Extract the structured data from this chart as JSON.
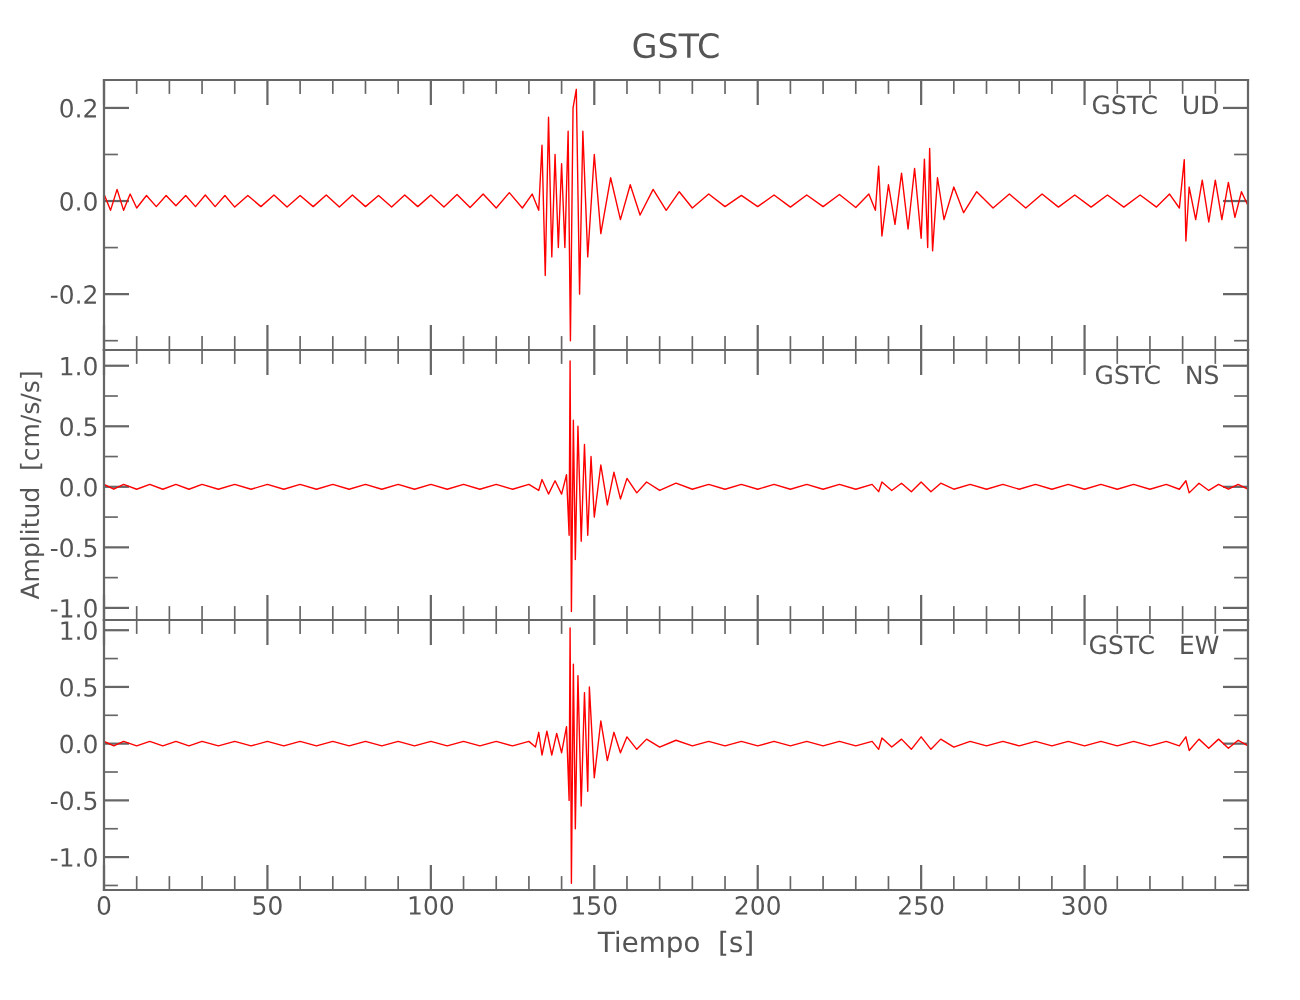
{
  "chart_data": [
    {
      "type": "line",
      "title": "GSTC",
      "annotations": [
        "GSTC   UD"
      ],
      "xlim": [
        0,
        350
      ],
      "xticks": [
        0,
        50,
        100,
        150,
        200,
        250,
        300
      ],
      "ylim": [
        -0.32,
        0.26
      ],
      "yticks": [
        {
          "value": -0.2,
          "label": "-0.2"
        },
        {
          "value": 0,
          "label": "0.0"
        },
        {
          "value": 0.2,
          "label": "0.2"
        }
      ],
      "tick_labels": "y",
      "grid": false,
      "legend": false,
      "series": [
        {
          "color": "#ff0000",
          "x": [
            0,
            2,
            4,
            6,
            8,
            10,
            13,
            16,
            19,
            22,
            25,
            28,
            31,
            34,
            37,
            40,
            44,
            48,
            52,
            56,
            60,
            64,
            68,
            72,
            76,
            80,
            84,
            88,
            92,
            96,
            100,
            104,
            108,
            112,
            116,
            120,
            124,
            128,
            131,
            133,
            134,
            135,
            136,
            137,
            138,
            139,
            140,
            141,
            142,
            142.7,
            143.5,
            144.5,
            145.5,
            146.5,
            148,
            150,
            152,
            155,
            158,
            161,
            164,
            168,
            172,
            176,
            180,
            185,
            190,
            195,
            200,
            205,
            210,
            215,
            220,
            225,
            230,
            234,
            236,
            237,
            238,
            240,
            242,
            244,
            246,
            248,
            250,
            251,
            252,
            252.6,
            253.5,
            255,
            257,
            260,
            263,
            267,
            272,
            277,
            282,
            287,
            292,
            297,
            302,
            307,
            312,
            317,
            322,
            326,
            329,
            330.5,
            331,
            332,
            334,
            336,
            338,
            340,
            342,
            344,
            346,
            348,
            350
          ],
          "values": [
            0.015,
            -0.02,
            0.025,
            -0.02,
            0.015,
            -0.015,
            0.012,
            -0.012,
            0.012,
            -0.01,
            0.012,
            -0.012,
            0.013,
            -0.012,
            0.012,
            -0.013,
            0.012,
            -0.012,
            0.013,
            -0.013,
            0.012,
            -0.012,
            0.013,
            -0.013,
            0.013,
            -0.012,
            0.012,
            -0.013,
            0.013,
            -0.012,
            0.013,
            -0.013,
            0.014,
            -0.014,
            0.015,
            -0.015,
            0.018,
            -0.015,
            0.015,
            -0.02,
            0.12,
            -0.16,
            0.18,
            -0.12,
            0.1,
            -0.1,
            0.08,
            -0.1,
            0.15,
            -0.3,
            0.2,
            0.24,
            -0.2,
            0.15,
            -0.12,
            0.1,
            -0.07,
            0.05,
            -0.04,
            0.035,
            -0.03,
            0.025,
            -0.02,
            0.02,
            -0.015,
            0.015,
            -0.012,
            0.012,
            -0.012,
            0.013,
            -0.013,
            0.013,
            -0.012,
            0.014,
            -0.014,
            0.015,
            -0.02,
            0.075,
            -0.075,
            0.035,
            -0.05,
            0.06,
            -0.06,
            0.07,
            -0.08,
            0.09,
            -0.1,
            0.113,
            -0.107,
            0.05,
            -0.04,
            0.03,
            -0.025,
            0.02,
            -0.015,
            0.015,
            -0.015,
            0.015,
            -0.013,
            0.013,
            -0.013,
            0.013,
            -0.013,
            0.013,
            -0.013,
            0.015,
            -0.015,
            0.089,
            -0.086,
            0.03,
            -0.04,
            0.045,
            -0.045,
            0.045,
            -0.04,
            0.04,
            -0.035,
            0.02,
            -0.01
          ]
        }
      ]
    },
    {
      "type": "line",
      "ylabel": "Amplitud  [cm/s/s]",
      "annotations": [
        "GSTC   NS"
      ],
      "xlim": [
        0,
        350
      ],
      "xticks": [
        0,
        50,
        100,
        150,
        200,
        250,
        300
      ],
      "ylim": [
        -1.1,
        1.13
      ],
      "yticks": [
        {
          "value": -1,
          "label": "-1.0"
        },
        {
          "value": -0.5,
          "label": "-0.5"
        },
        {
          "value": 0,
          "label": "0.0"
        },
        {
          "value": 0.5,
          "label": "0.5"
        },
        {
          "value": 1,
          "label": "1.0"
        }
      ],
      "tick_labels": "y",
      "grid": false,
      "legend": false,
      "series": [
        {
          "color": "#ff0000",
          "x": [
            0,
            3,
            6,
            10,
            14,
            18,
            22,
            26,
            30,
            35,
            40,
            45,
            50,
            55,
            60,
            65,
            70,
            75,
            80,
            85,
            90,
            95,
            100,
            105,
            110,
            115,
            120,
            125,
            130,
            133,
            134,
            136,
            138,
            140,
            141.5,
            142.3,
            142.6,
            143,
            143.6,
            144.2,
            145,
            146,
            147,
            148,
            149,
            150,
            152,
            154,
            156,
            158,
            160,
            163,
            166,
            170,
            175,
            180,
            185,
            190,
            195,
            200,
            205,
            210,
            215,
            220,
            225,
            230,
            235,
            237,
            238,
            241,
            244,
            247,
            250,
            253,
            256,
            260,
            265,
            270,
            275,
            280,
            285,
            290,
            295,
            300,
            305,
            310,
            315,
            320,
            325,
            329,
            331,
            332,
            335,
            338,
            341,
            344,
            347,
            350
          ],
          "values": [
            0.02,
            -0.02,
            0.02,
            -0.02,
            0.02,
            -0.02,
            0.02,
            -0.02,
            0.02,
            -0.02,
            0.02,
            -0.02,
            0.02,
            -0.02,
            0.02,
            -0.02,
            0.02,
            -0.02,
            0.02,
            -0.02,
            0.02,
            -0.02,
            0.02,
            -0.02,
            0.02,
            -0.02,
            0.02,
            -0.02,
            0.02,
            -0.03,
            0.06,
            -0.06,
            0.05,
            -0.06,
            0.1,
            -0.4,
            1.04,
            -1.03,
            0.55,
            -0.6,
            0.5,
            -0.45,
            0.35,
            -0.4,
            0.25,
            -0.25,
            0.18,
            -0.15,
            0.12,
            -0.1,
            0.07,
            -0.05,
            0.04,
            -0.03,
            0.03,
            -0.02,
            0.02,
            -0.02,
            0.02,
            -0.02,
            0.02,
            -0.02,
            0.02,
            -0.02,
            0.02,
            -0.02,
            0.02,
            -0.04,
            0.04,
            -0.03,
            0.03,
            -0.04,
            0.04,
            -0.04,
            0.03,
            -0.02,
            0.02,
            -0.02,
            0.02,
            -0.02,
            0.02,
            -0.02,
            0.02,
            -0.02,
            0.02,
            -0.02,
            0.02,
            -0.02,
            0.02,
            -0.02,
            0.05,
            -0.05,
            0.03,
            -0.03,
            0.02,
            -0.02,
            0.02,
            -0.02
          ]
        }
      ]
    },
    {
      "type": "line",
      "xlabel": "Tiempo  [s]",
      "annotations": [
        "GSTC   EW"
      ],
      "xlim": [
        0,
        350
      ],
      "xticks": [
        0,
        50,
        100,
        150,
        200,
        250,
        300
      ],
      "ylim": [
        -1.29,
        1.09
      ],
      "yticks": [
        {
          "value": -1,
          "label": "-1.0"
        },
        {
          "value": -0.5,
          "label": "-0.5"
        },
        {
          "value": 0,
          "label": "0.0"
        },
        {
          "value": 0.5,
          "label": "0.5"
        },
        {
          "value": 1,
          "label": "1.0"
        }
      ],
      "grid": false,
      "legend": false,
      "series": [
        {
          "color": "#ff0000",
          "x": [
            0,
            3,
            6,
            10,
            14,
            18,
            22,
            26,
            30,
            35,
            40,
            45,
            50,
            55,
            60,
            65,
            70,
            75,
            80,
            85,
            90,
            95,
            100,
            105,
            110,
            115,
            120,
            125,
            130,
            132,
            133,
            134,
            135.5,
            137,
            138.5,
            140,
            141.5,
            142.3,
            142.6,
            143,
            143.6,
            144.2,
            145,
            146,
            147,
            148,
            148.5,
            150,
            152,
            154,
            156,
            158,
            160,
            163,
            166,
            170,
            175,
            180,
            185,
            190,
            195,
            200,
            205,
            210,
            215,
            220,
            225,
            230,
            235,
            237,
            238,
            241,
            244,
            247,
            250,
            253,
            256,
            260,
            265,
            270,
            275,
            280,
            285,
            290,
            295,
            300,
            305,
            310,
            315,
            320,
            325,
            329,
            331,
            332,
            335,
            338,
            341,
            344,
            347,
            350
          ],
          "values": [
            0.02,
            -0.02,
            0.02,
            -0.02,
            0.02,
            -0.02,
            0.02,
            -0.02,
            0.02,
            -0.02,
            0.02,
            -0.02,
            0.02,
            -0.02,
            0.02,
            -0.02,
            0.02,
            -0.02,
            0.02,
            -0.02,
            0.02,
            -0.02,
            0.02,
            -0.02,
            0.02,
            -0.02,
            0.02,
            -0.02,
            0.02,
            -0.03,
            0.1,
            -0.1,
            0.11,
            -0.1,
            0.09,
            -0.08,
            0.15,
            -0.5,
            1.02,
            -1.23,
            0.7,
            -0.75,
            0.6,
            -0.55,
            0.45,
            -0.42,
            0.5,
            -0.3,
            0.2,
            -0.15,
            0.1,
            -0.08,
            0.06,
            -0.05,
            0.04,
            -0.03,
            0.03,
            -0.02,
            0.02,
            -0.02,
            0.02,
            -0.02,
            0.02,
            -0.02,
            0.02,
            -0.02,
            0.02,
            -0.02,
            0.02,
            -0.05,
            0.05,
            -0.03,
            0.04,
            -0.05,
            0.06,
            -0.05,
            0.04,
            -0.03,
            0.02,
            -0.02,
            0.02,
            -0.02,
            0.02,
            -0.02,
            0.02,
            -0.02,
            0.02,
            -0.02,
            0.02,
            -0.02,
            0.02,
            -0.02,
            0.06,
            -0.06,
            0.04,
            -0.04,
            0.04,
            -0.04,
            0.03,
            -0.02
          ]
        }
      ]
    }
  ]
}
